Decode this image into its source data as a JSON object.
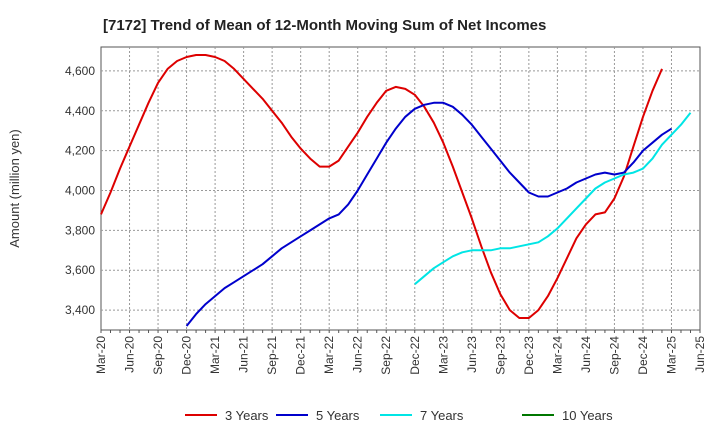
{
  "chart_data": {
    "type": "line",
    "title": "[7172]  Trend of Mean of 12-Month Moving Sum of Net Incomes",
    "ylabel": "Amount (million yen)",
    "xlabel": "",
    "ylim": [
      3300,
      4720
    ],
    "yticks": [
      3400,
      3600,
      3800,
      4000,
      4200,
      4400,
      4600
    ],
    "ytick_labels": [
      "3,400",
      "3,600",
      "3,800",
      "4,000",
      "4,200",
      "4,400",
      "4,600"
    ],
    "x_start": "2020-03",
    "x_end": "2025-06",
    "xtick_labels": [
      "Mar-20",
      "Jun-20",
      "Sep-20",
      "Dec-20",
      "Mar-21",
      "Jun-21",
      "Sep-21",
      "Dec-21",
      "Mar-22",
      "Jun-22",
      "Sep-22",
      "Dec-22",
      "Mar-23",
      "Jun-23",
      "Sep-23",
      "Dec-23",
      "Mar-24",
      "Jun-24",
      "Sep-24",
      "Dec-24",
      "Mar-25",
      "Jun-25"
    ],
    "grid": true,
    "legend_position": "bottom",
    "series": [
      {
        "name": "3 Years",
        "color": "#dd0000",
        "start": "2020-03",
        "values": [
          3880,
          3990,
          4110,
          4220,
          4330,
          4440,
          4540,
          4610,
          4650,
          4670,
          4680,
          4680,
          4670,
          4650,
          4610,
          4560,
          4510,
          4460,
          4400,
          4340,
          4270,
          4210,
          4160,
          4120,
          4120,
          4150,
          4220,
          4290,
          4370,
          4440,
          4500,
          4520,
          4510,
          4480,
          4420,
          4340,
          4240,
          4120,
          3990,
          3860,
          3720,
          3590,
          3480,
          3400,
          3360,
          3360,
          3400,
          3470,
          3560,
          3660,
          3760,
          3830,
          3880,
          3890,
          3960,
          4070,
          4220,
          4370,
          4500,
          4610
        ]
      },
      {
        "name": "5 Years",
        "color": "#0000cc",
        "start": "2020-12",
        "values": [
          3320,
          3380,
          3430,
          3470,
          3510,
          3540,
          3570,
          3600,
          3630,
          3670,
          3710,
          3740,
          3770,
          3800,
          3830,
          3860,
          3880,
          3930,
          4000,
          4080,
          4160,
          4240,
          4310,
          4370,
          4410,
          4430,
          4440,
          4440,
          4420,
          4380,
          4330,
          4270,
          4210,
          4150,
          4090,
          4040,
          3990,
          3970,
          3970,
          3990,
          4010,
          4040,
          4060,
          4080,
          4090,
          4080,
          4090,
          4140,
          4200,
          4240,
          4280,
          4310
        ]
      },
      {
        "name": "7 Years",
        "color": "#00e5e5",
        "start": "2022-12",
        "values": [
          3530,
          3570,
          3610,
          3640,
          3670,
          3690,
          3700,
          3700,
          3700,
          3710,
          3710,
          3720,
          3730,
          3740,
          3770,
          3810,
          3860,
          3910,
          3960,
          4010,
          4040,
          4060,
          4080,
          4090,
          4110,
          4160,
          4230,
          4280,
          4330,
          4390
        ]
      },
      {
        "name": "10 Years",
        "color": "#007700",
        "start": "2025-03",
        "values": []
      }
    ]
  }
}
